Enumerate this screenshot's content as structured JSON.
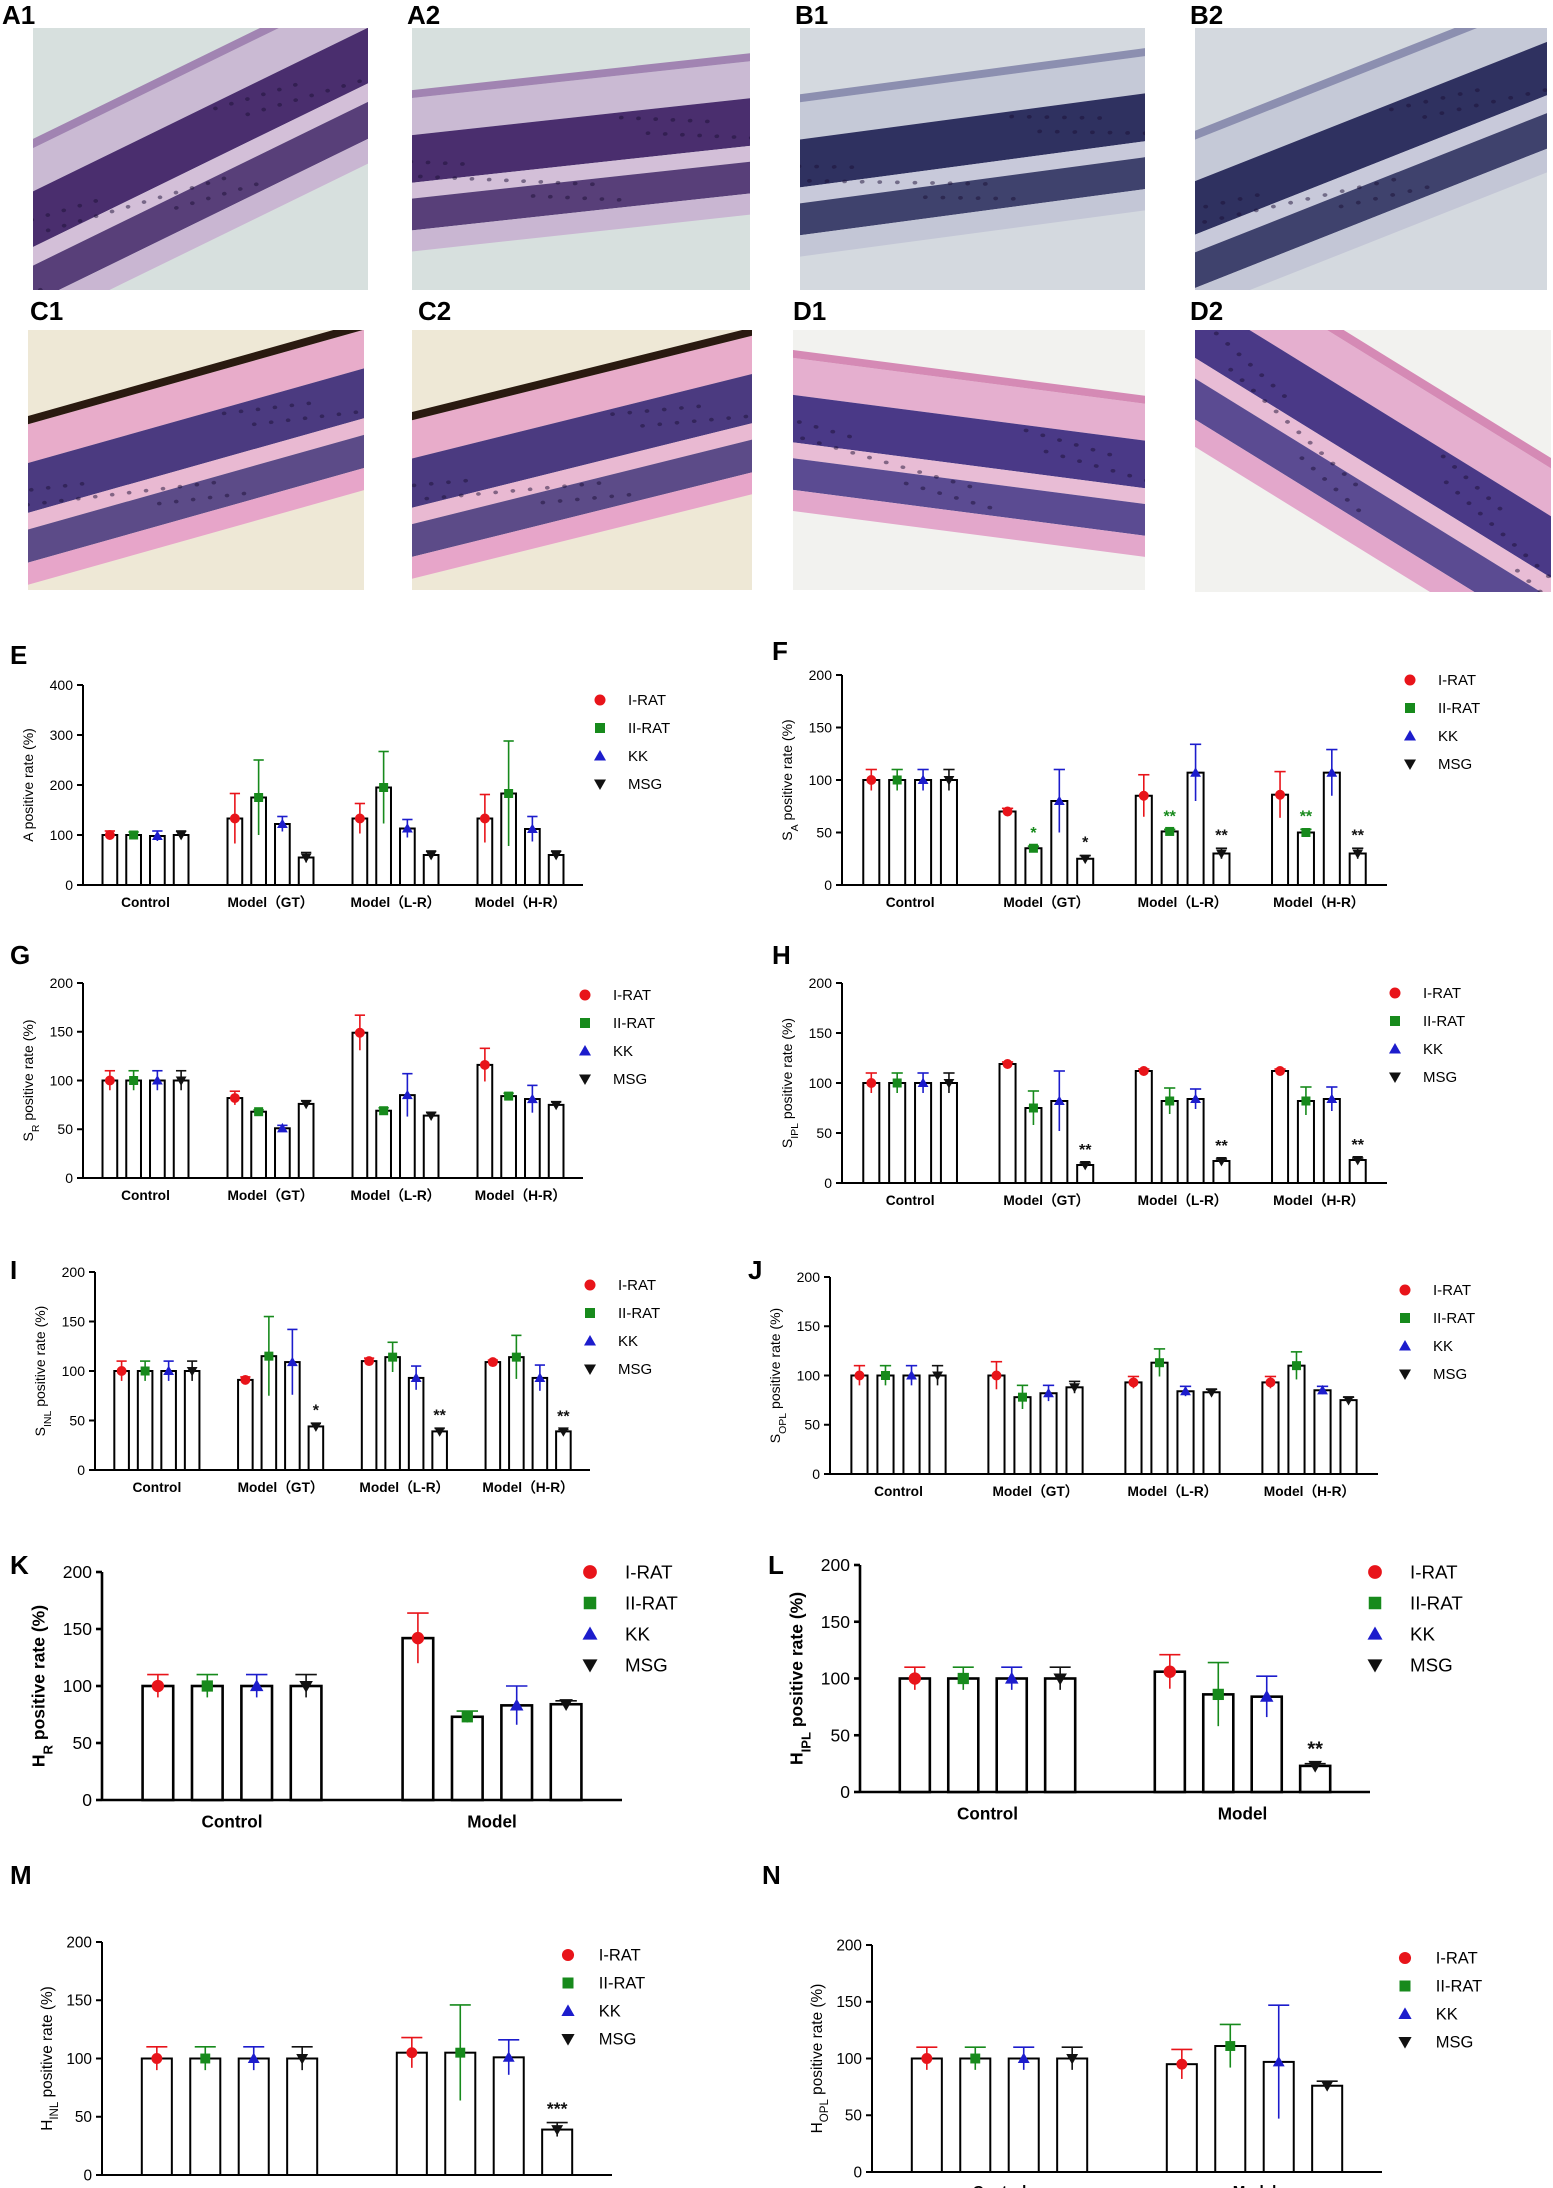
{
  "images": [
    {
      "label": "A1",
      "style": "purple"
    },
    {
      "label": "A2",
      "style": "purple"
    },
    {
      "label": "B1",
      "style": "blue"
    },
    {
      "label": "B2",
      "style": "blue"
    },
    {
      "label": "C1",
      "style": "pink-pigment"
    },
    {
      "label": "C2",
      "style": "pink-pigment"
    },
    {
      "label": "D1",
      "style": "pink"
    },
    {
      "label": "D2",
      "style": "pink"
    }
  ],
  "legend": [
    "I-RAT",
    "II-RAT",
    "KK",
    "MSG"
  ],
  "series_colors": [
    "#e8141a",
    "#178a1c",
    "#1c1ccc",
    "#111111"
  ],
  "series_markers": [
    "circle",
    "square",
    "triangle-up",
    "triangle-down"
  ],
  "chart_data": [
    {
      "panel": "E",
      "type": "bar",
      "ylabel": "A positive rate (%)",
      "ylim": [
        0,
        400
      ],
      "yticks": [
        0,
        100,
        200,
        300,
        400
      ],
      "categories": [
        "Control",
        "Model（GT）",
        "Model（L-R）",
        "Model（H-R）"
      ],
      "series": [
        {
          "name": "I-RAT",
          "values": [
            100,
            133,
            133,
            133
          ],
          "errors": [
            8,
            50,
            30,
            48
          ]
        },
        {
          "name": "II-RAT",
          "values": [
            100,
            175,
            195,
            183
          ],
          "errors": [
            6,
            75,
            72,
            105
          ]
        },
        {
          "name": "KK",
          "values": [
            98,
            122,
            113,
            112
          ],
          "errors": [
            10,
            15,
            18,
            25
          ]
        },
        {
          "name": "MSG",
          "values": [
            100,
            55,
            60,
            60
          ],
          "errors": [
            8,
            10,
            8,
            8
          ]
        }
      ],
      "annotations": []
    },
    {
      "panel": "F",
      "type": "bar",
      "ylabel": "S_A positive rate (%)",
      "ylim": [
        0,
        200
      ],
      "yticks": [
        0,
        50,
        100,
        150,
        200
      ],
      "categories": [
        "Control",
        "Model（GT）",
        "Model（L-R）",
        "Model（H-R）"
      ],
      "series": [
        {
          "name": "I-RAT",
          "values": [
            100,
            70,
            85,
            86
          ],
          "errors": [
            10,
            3,
            20,
            22
          ]
        },
        {
          "name": "II-RAT",
          "values": [
            100,
            35,
            51,
            50
          ],
          "errors": [
            10,
            2,
            2,
            3
          ]
        },
        {
          "name": "KK",
          "values": [
            100,
            80,
            107,
            107
          ],
          "errors": [
            10,
            30,
            27,
            22
          ]
        },
        {
          "name": "MSG",
          "values": [
            100,
            25,
            30,
            30
          ],
          "errors": [
            10,
            3,
            5,
            5
          ]
        }
      ],
      "annotations": [
        {
          "category": 1,
          "series": 1,
          "text": "*",
          "color": "#178a1c"
        },
        {
          "category": 1,
          "series": 3,
          "text": "*",
          "color": "#111111"
        },
        {
          "category": 2,
          "series": 1,
          "text": "**",
          "color": "#178a1c"
        },
        {
          "category": 2,
          "series": 3,
          "text": "**",
          "color": "#111111"
        },
        {
          "category": 3,
          "series": 1,
          "text": "**",
          "color": "#178a1c"
        },
        {
          "category": 3,
          "series": 3,
          "text": "**",
          "color": "#111111"
        }
      ]
    },
    {
      "panel": "G",
      "type": "bar",
      "ylabel": "S_R positive rate (%)",
      "ylim": [
        0,
        200
      ],
      "yticks": [
        0,
        50,
        100,
        150,
        200
      ],
      "categories": [
        "Control",
        "Model（GT）",
        "Model（L-R）",
        "Model（H-R）"
      ],
      "series": [
        {
          "name": "I-RAT",
          "values": [
            100,
            82,
            149,
            116
          ],
          "errors": [
            10,
            7,
            18,
            17
          ]
        },
        {
          "name": "II-RAT",
          "values": [
            100,
            68,
            69,
            84
          ],
          "errors": [
            10,
            2,
            3,
            3
          ]
        },
        {
          "name": "KK",
          "values": [
            100,
            51,
            85,
            81
          ],
          "errors": [
            10,
            3,
            22,
            14
          ]
        },
        {
          "name": "MSG",
          "values": [
            100,
            76,
            64,
            75
          ],
          "errors": [
            10,
            3,
            3,
            3
          ]
        }
      ],
      "annotations": []
    },
    {
      "panel": "H",
      "type": "bar",
      "ylabel": "S_IPL positive rate (%)",
      "ylim": [
        0,
        200
      ],
      "yticks": [
        0,
        50,
        100,
        150,
        200
      ],
      "categories": [
        "Control",
        "Model（GT）",
        "Model（L-R）",
        "Model（H-R）"
      ],
      "series": [
        {
          "name": "I-RAT",
          "values": [
            100,
            119,
            112,
            112
          ],
          "errors": [
            10,
            2,
            2,
            2
          ]
        },
        {
          "name": "II-RAT",
          "values": [
            100,
            75,
            82,
            82
          ],
          "errors": [
            10,
            17,
            13,
            14
          ]
        },
        {
          "name": "KK",
          "values": [
            100,
            82,
            84,
            84
          ],
          "errors": [
            10,
            30,
            10,
            12
          ]
        },
        {
          "name": "MSG",
          "values": [
            100,
            18,
            22,
            23
          ],
          "errors": [
            10,
            2,
            2,
            2
          ]
        }
      ],
      "annotations": [
        {
          "category": 1,
          "series": 3,
          "text": "**",
          "color": "#111111"
        },
        {
          "category": 2,
          "series": 3,
          "text": "**",
          "color": "#111111"
        },
        {
          "category": 3,
          "series": 3,
          "text": "**",
          "color": "#111111"
        }
      ]
    },
    {
      "panel": "I",
      "type": "bar",
      "ylabel": "S_INL positive rate (%)",
      "ylim": [
        0,
        200
      ],
      "yticks": [
        0,
        50,
        100,
        150,
        200
      ],
      "categories": [
        "Control",
        "Model（GT）",
        "Model（L-R）",
        "Model（H-R）"
      ],
      "series": [
        {
          "name": "I-RAT",
          "values": [
            100,
            91,
            110,
            109
          ],
          "errors": [
            10,
            3,
            3,
            2
          ]
        },
        {
          "name": "II-RAT",
          "values": [
            100,
            115,
            114,
            114
          ],
          "errors": [
            10,
            40,
            15,
            22
          ]
        },
        {
          "name": "KK",
          "values": [
            100,
            109,
            93,
            93
          ],
          "errors": [
            10,
            33,
            12,
            13
          ]
        },
        {
          "name": "MSG",
          "values": [
            100,
            44,
            39,
            39
          ],
          "errors": [
            10,
            3,
            3,
            2
          ]
        }
      ],
      "annotations": [
        {
          "category": 1,
          "series": 3,
          "text": "*",
          "color": "#111111"
        },
        {
          "category": 2,
          "series": 3,
          "text": "**",
          "color": "#111111"
        },
        {
          "category": 3,
          "series": 3,
          "text": "**",
          "color": "#111111"
        }
      ]
    },
    {
      "panel": "J",
      "type": "bar",
      "ylabel": "S_OPL positive rate (%)",
      "ylim": [
        0,
        200
      ],
      "yticks": [
        0,
        50,
        100,
        150,
        200
      ],
      "categories": [
        "Control",
        "Model（GT）",
        "Model（L-R）",
        "Model（H-R）"
      ],
      "series": [
        {
          "name": "I-RAT",
          "values": [
            100,
            100,
            93,
            93
          ],
          "errors": [
            10,
            14,
            6,
            6
          ]
        },
        {
          "name": "II-RAT",
          "values": [
            100,
            78,
            113,
            110
          ],
          "errors": [
            10,
            12,
            14,
            14
          ]
        },
        {
          "name": "KK",
          "values": [
            100,
            82,
            84,
            85
          ],
          "errors": [
            10,
            8,
            5,
            4
          ]
        },
        {
          "name": "MSG",
          "values": [
            100,
            88,
            83,
            75
          ],
          "errors": [
            10,
            6,
            3,
            3
          ]
        }
      ],
      "annotations": []
    },
    {
      "panel": "K",
      "type": "bar",
      "ylabel": "H_R positive rate (%)",
      "ylim": [
        0,
        200
      ],
      "yticks": [
        0,
        50,
        100,
        150,
        200
      ],
      "categories": [
        "Control",
        "Model"
      ],
      "series": [
        {
          "name": "I-RAT",
          "values": [
            100,
            142
          ],
          "errors": [
            10,
            22
          ]
        },
        {
          "name": "II-RAT",
          "values": [
            100,
            73
          ],
          "errors": [
            10,
            5
          ]
        },
        {
          "name": "KK",
          "values": [
            100,
            83
          ],
          "errors": [
            10,
            17
          ]
        },
        {
          "name": "MSG",
          "values": [
            100,
            84
          ],
          "errors": [
            10,
            3
          ]
        }
      ],
      "annotations": []
    },
    {
      "panel": "L",
      "type": "bar",
      "ylabel": "H_IPL positive rate (%)",
      "ylim": [
        0,
        200
      ],
      "yticks": [
        0,
        50,
        100,
        150,
        200
      ],
      "categories": [
        "Control",
        "Model"
      ],
      "series": [
        {
          "name": "I-RAT",
          "values": [
            100,
            106
          ],
          "errors": [
            10,
            15
          ]
        },
        {
          "name": "II-RAT",
          "values": [
            100,
            86
          ],
          "errors": [
            10,
            28
          ]
        },
        {
          "name": "KK",
          "values": [
            100,
            84
          ],
          "errors": [
            10,
            18
          ]
        },
        {
          "name": "MSG",
          "values": [
            100,
            23
          ],
          "errors": [
            10,
            2
          ]
        }
      ],
      "annotations": [
        {
          "category": 1,
          "series": 3,
          "text": "**",
          "color": "#111111"
        }
      ]
    },
    {
      "panel": "M",
      "type": "bar",
      "ylabel": "H_INL positive rate (%)",
      "ylim": [
        0,
        200
      ],
      "yticks": [
        0,
        50,
        100,
        150,
        200
      ],
      "categories": [
        "Control",
        "Model"
      ],
      "series": [
        {
          "name": "I-RAT",
          "values": [
            100,
            105
          ],
          "errors": [
            10,
            13
          ]
        },
        {
          "name": "II-RAT",
          "values": [
            100,
            105
          ],
          "errors": [
            10,
            41
          ]
        },
        {
          "name": "KK",
          "values": [
            100,
            101
          ],
          "errors": [
            10,
            15
          ]
        },
        {
          "name": "MSG",
          "values": [
            100,
            39
          ],
          "errors": [
            10,
            6
          ]
        }
      ],
      "annotations": [
        {
          "category": 1,
          "series": 3,
          "text": "***",
          "color": "#111111"
        }
      ]
    },
    {
      "panel": "N",
      "type": "bar",
      "ylabel": "H_OPL positive rate (%)",
      "ylim": [
        0,
        200
      ],
      "yticks": [
        0,
        50,
        100,
        150,
        200
      ],
      "categories": [
        "Control",
        "Model"
      ],
      "series": [
        {
          "name": "I-RAT",
          "values": [
            100,
            95
          ],
          "errors": [
            10,
            13
          ]
        },
        {
          "name": "II-RAT",
          "values": [
            100,
            111
          ],
          "errors": [
            10,
            19
          ]
        },
        {
          "name": "KK",
          "values": [
            100,
            97
          ],
          "errors": [
            10,
            50
          ]
        },
        {
          "name": "MSG",
          "values": [
            100,
            76
          ],
          "errors": [
            10,
            4
          ]
        }
      ],
      "annotations": []
    }
  ]
}
